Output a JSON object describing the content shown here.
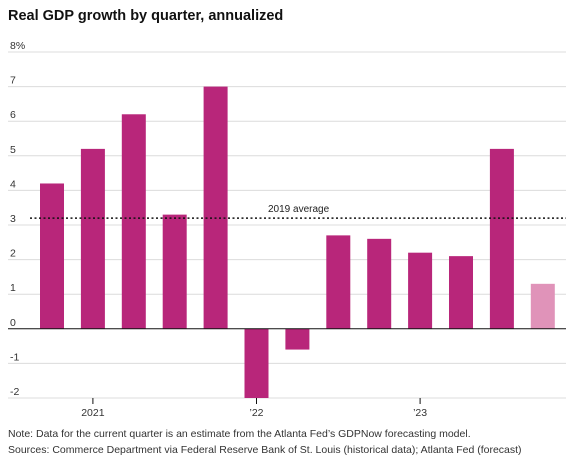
{
  "chart_data": {
    "type": "bar",
    "title": "Real GDP growth by quarter, annualized",
    "y_tick_labels": [
      "8%",
      "7",
      "6",
      "5",
      "4",
      "3",
      "2",
      "1",
      "0",
      "-1",
      "-2"
    ],
    "y_ticks": [
      8,
      7,
      6,
      5,
      4,
      3,
      2,
      1,
      0,
      -1,
      -2
    ],
    "ylim": [
      -2,
      8
    ],
    "x_tick_labels": [
      {
        "label": "2021",
        "at_bar": 1
      },
      {
        "label": "’22",
        "at_bar": 5
      },
      {
        "label": "’23",
        "at_bar": 9
      }
    ],
    "series": [
      {
        "values": [
          4.2,
          5.2,
          6.2,
          3.3,
          7.0,
          -2.0,
          -0.6,
          2.7,
          2.6,
          2.2,
          2.1,
          5.2,
          1.3
        ],
        "kinds": [
          "historical",
          "historical",
          "historical",
          "historical",
          "historical",
          "historical",
          "historical",
          "historical",
          "historical",
          "historical",
          "historical",
          "historical",
          "forecast"
        ]
      }
    ],
    "reference_line": {
      "value": 3.2,
      "label": "2019 average"
    },
    "grid": true,
    "colors": {
      "historical": "#b8267a",
      "forecast": "#e093b9",
      "grid": "#dcdcdc",
      "zero_line": "#111111"
    }
  },
  "notes": {
    "line1": "Note: Data for the current quarter is an estimate from the Atlanta Fed’s GDPNow forecasting model.",
    "line2": "Sources: Commerce Department via Federal Reserve Bank of St. Louis (historical data); Atlanta Fed (forecast)"
  }
}
